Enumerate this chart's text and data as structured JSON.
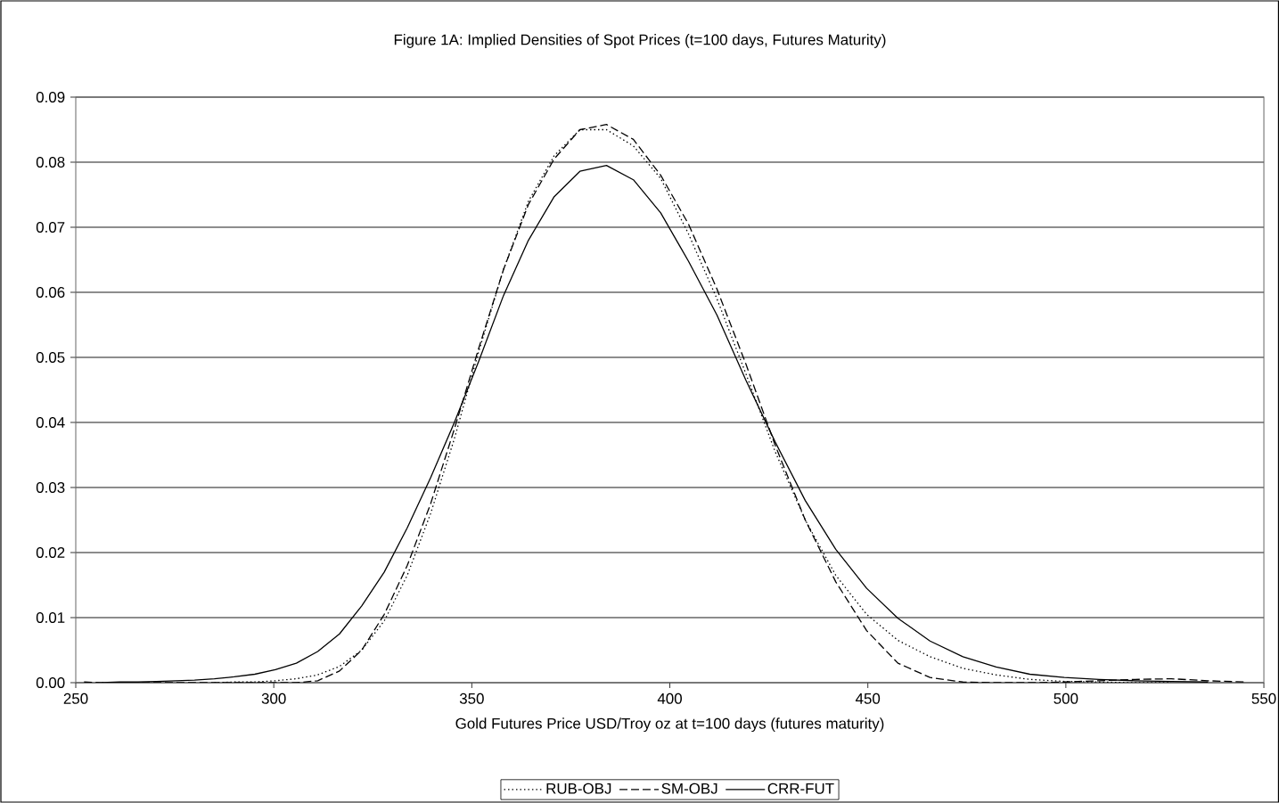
{
  "chart_data": {
    "type": "line",
    "title": "Figure 1A: Implied Densities of Spot Prices (t=100 days, Futures Maturity)",
    "xlabel": "Gold Futures Price USD/Troy oz at t=100 days (futures maturity)",
    "x": [
      252.1,
      256.5,
      261.1,
      265.7,
      270.4,
      275.2,
      280.0,
      285.0,
      290.0,
      295.2,
      300.4,
      305.7,
      311.1,
      316.6,
      322.2,
      327.9,
      333.7,
      339.6,
      345.6,
      351.8,
      358.0,
      364.3,
      370.8,
      377.3,
      384.0,
      390.8,
      397.7,
      404.7,
      411.9,
      419.2,
      426.6,
      434.2,
      441.9,
      449.7,
      457.6,
      465.7,
      474.0,
      482.4,
      490.9,
      499.6,
      508.4,
      517.4,
      526.6,
      535.9,
      545.4
    ],
    "series": [
      {
        "name": "RUB-OBJ",
        "color": "#000000",
        "line_style": "dotted",
        "x": [
          285.0,
          290.0,
          295.2,
          300.4,
          305.7,
          311.1,
          316.6,
          322.2,
          327.9,
          333.7,
          339.6,
          345.6,
          351.8,
          358.0,
          364.3,
          370.8,
          377.3,
          384.0,
          390.8,
          397.7,
          404.7,
          411.9,
          419.2,
          426.6,
          434.2,
          441.9,
          449.7,
          457.6,
          465.7,
          474.0,
          482.4,
          490.9,
          499.6,
          508.4,
          517.4,
          526.6
        ],
        "values": [
          0,
          0.0001,
          0.0001,
          0.0003,
          0.0006,
          0.0012,
          0.0025,
          0.005,
          0.0095,
          0.0165,
          0.026,
          0.0375,
          0.051,
          0.0635,
          0.074,
          0.081,
          0.085,
          0.085,
          0.0825,
          0.0775,
          0.069,
          0.059,
          0.0475,
          0.0355,
          0.025,
          0.0165,
          0.0105,
          0.0065,
          0.004,
          0.0022,
          0.0012,
          0.0005,
          0.0002,
          0.0001,
          0,
          0
        ]
      },
      {
        "name": "SM-OBJ",
        "color": "#000000",
        "line_style": "dashed",
        "values": [
          0.0001,
          0,
          0,
          0,
          0,
          0,
          0,
          0,
          0,
          0,
          0,
          0,
          0.0003,
          0.0018,
          0.005,
          0.0105,
          0.018,
          0.0275,
          0.039,
          0.0515,
          0.0635,
          0.0735,
          0.0805,
          0.085,
          0.0858,
          0.0835,
          0.078,
          0.0705,
          0.0605,
          0.049,
          0.0365,
          0.025,
          0.0155,
          0.008,
          0.003,
          0.0008,
          0.0001,
          0,
          0,
          0.0001,
          0.0003,
          0.0005,
          0.0006,
          0.0003,
          0.0001
        ]
      },
      {
        "name": "CRR-FUT",
        "color": "#000000",
        "line_style": "solid",
        "x": [
          256.5,
          261.1,
          265.7,
          270.4,
          275.2,
          280.0,
          285.0,
          290.0,
          295.2,
          300.4,
          305.7,
          311.1,
          316.6,
          322.2,
          327.9,
          333.7,
          339.6,
          345.6,
          351.8,
          358.0,
          364.3,
          370.8,
          377.3,
          384.0,
          390.8,
          397.7,
          404.7,
          411.9,
          419.2,
          426.6,
          434.2,
          441.9,
          449.7,
          457.6,
          465.7,
          474.0,
          482.4,
          490.9,
          499.6,
          508.4,
          517.4,
          526.6,
          535.9
        ],
        "values": [
          0,
          0.0001,
          0.0001,
          0.0002,
          0.0003,
          0.0004,
          0.0006,
          0.0009,
          0.0013,
          0.002,
          0.003,
          0.0048,
          0.0075,
          0.0118,
          0.017,
          0.0238,
          0.0315,
          0.04,
          0.0495,
          0.0595,
          0.068,
          0.0747,
          0.0786,
          0.0795,
          0.0773,
          0.0722,
          0.0648,
          0.0565,
          0.0465,
          0.037,
          0.028,
          0.0205,
          0.0145,
          0.0099,
          0.0064,
          0.004,
          0.0024,
          0.0013,
          0.0008,
          0.0005,
          0.0003,
          0.0002,
          0.0001
        ]
      }
    ],
    "xlim": [
      250,
      550
    ],
    "xticks": [
      250,
      300,
      350,
      400,
      450,
      500,
      550
    ],
    "ylim": [
      0,
      0.09
    ],
    "yticks": [
      {
        "value": 0,
        "label": "0.00"
      },
      {
        "value": 0.01,
        "label": "0.01"
      },
      {
        "value": 0.02,
        "label": "0.02"
      },
      {
        "value": 0.03,
        "label": "0.03"
      },
      {
        "value": 0.04,
        "label": "0.04"
      },
      {
        "value": 0.05,
        "label": "0.05"
      },
      {
        "value": 0.06,
        "label": "0.06"
      },
      {
        "value": 0.07,
        "label": "0.07"
      },
      {
        "value": 0.08,
        "label": "0.08"
      },
      {
        "value": 0.09,
        "label": "0.09"
      }
    ],
    "grid": "y",
    "legend": "bottom"
  }
}
